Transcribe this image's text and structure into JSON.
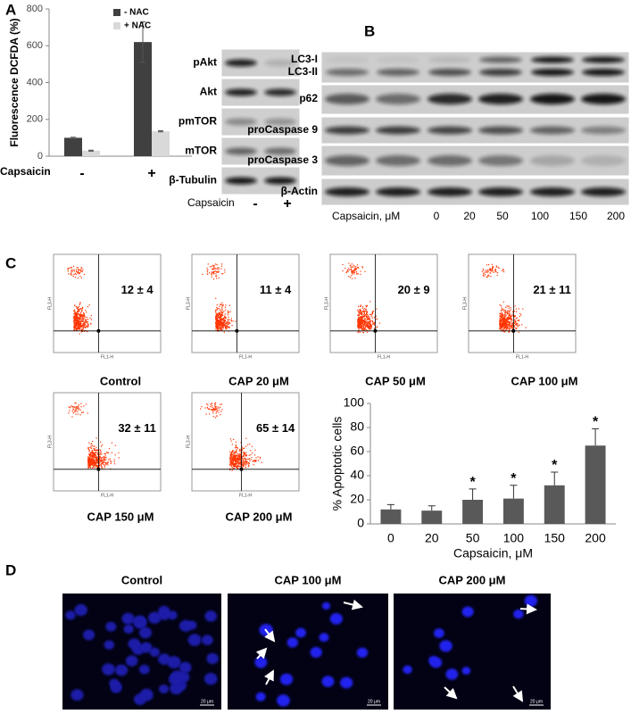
{
  "panel_labels": [
    "A",
    "B",
    "C",
    "D"
  ],
  "chart_data": [
    {
      "type": "bar",
      "ylabel": "Fluorescence DCFDA (%)",
      "xlabel": "Capsaicin",
      "categories": [
        "-",
        "+"
      ],
      "series": [
        {
          "name": "- NAC",
          "color": "#404040",
          "values": [
            100,
            620
          ],
          "errors": [
            3,
            110
          ]
        },
        {
          "name": "+ NAC",
          "color": "#d9d9d9",
          "values": [
            30,
            135
          ],
          "errors": [
            3,
            3
          ]
        }
      ],
      "ylim": [
        0,
        800
      ],
      "yticks": [
        0,
        200,
        400,
        600,
        800
      ]
    },
    {
      "type": "bar",
      "ylabel": "% Apoptotic cells",
      "xlabel": "Capsaicin, μM",
      "categories": [
        "0",
        "20",
        "50",
        "100",
        "150",
        "200"
      ],
      "values": [
        12,
        11,
        20,
        21,
        32,
        65
      ],
      "errors": [
        4,
        4,
        9,
        11,
        11,
        14
      ],
      "markers": [
        null,
        null,
        "*",
        "*",
        "*",
        "*"
      ],
      "color": "#595959",
      "ylim": [
        0,
        100
      ],
      "yticks": [
        0,
        20,
        40,
        60,
        80,
        100
      ]
    }
  ],
  "blot_a": {
    "rows": [
      "pAkt",
      "Akt",
      "pmTOR",
      "mTOR",
      "β-Tubulin"
    ],
    "xlabel": "Capsaicin",
    "lanes": [
      "-",
      "+"
    ]
  },
  "blot_b": {
    "rows": [
      "LC3-I",
      "LC3-II",
      "p62",
      "proCaspase 9",
      "proCaspase 3",
      "β-Actin"
    ],
    "xlabel": "Capsaicin, μM",
    "lanes": [
      "0",
      "20",
      "50",
      "100",
      "150",
      "200"
    ]
  },
  "flow_cytometry": {
    "xlabel": "FL1-H",
    "ylabel": "FL3-H",
    "panels": [
      {
        "caption": "Control",
        "value": "12 ± 4"
      },
      {
        "caption": "CAP 20 μM",
        "value": "11 ± 4"
      },
      {
        "caption": "CAP 50 μM",
        "value": "20 ± 9"
      },
      {
        "caption": "CAP 100 μM",
        "value": "21 ± 11"
      },
      {
        "caption": "CAP 150 μM",
        "value": "32 ± 11"
      },
      {
        "caption": "CAP 200 μM",
        "value": "65 ± 14"
      }
    ]
  },
  "microscopy": {
    "panels": [
      {
        "caption": "Control",
        "scale": "20 μm"
      },
      {
        "caption": "CAP 100 μM",
        "scale": "20 μm"
      },
      {
        "caption": "CAP 200 μM",
        "scale": "20 μm"
      }
    ]
  }
}
